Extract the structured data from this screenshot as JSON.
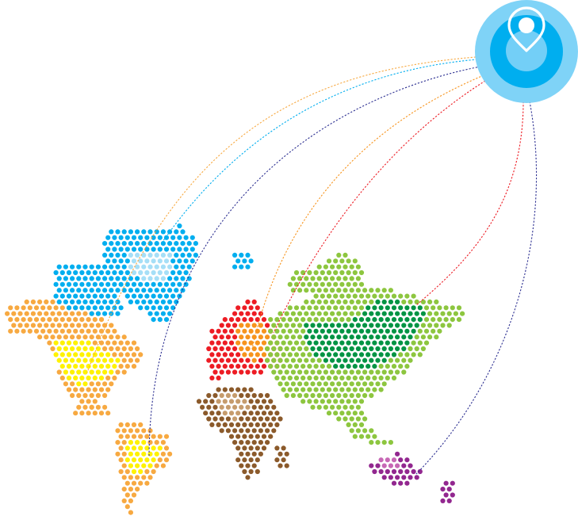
{
  "colors": {
    "pin_outer": "#7fd3f7",
    "pin_inner": "#00aeef",
    "pin_glyph": "#ffffff",
    "north_america": "#f7a941",
    "north_america_highlight": "#fff200",
    "greenland": "#00aeef",
    "greenland_highlight": "#a6dff7",
    "south_america": "#f7a941",
    "south_america_highlight": "#fff200",
    "europe": "#ed1c24",
    "europe_highlight": "#f7941d",
    "africa": "#8b5a2b",
    "africa_highlight": "#c69c6d",
    "asia": "#8dc63f",
    "asia_highlight": "#009444",
    "oceania": "#92278f",
    "oceania_highlight": "#c768b5",
    "route_north_america": "#f7a941",
    "route_greenland": "#00aeef",
    "route_south_america": "#2e3192",
    "route_europe": "#f7941d",
    "route_asia": "#ed1c24",
    "route_oceania": "#2e3192"
  },
  "icons": {
    "hub": "location-pin-icon"
  }
}
